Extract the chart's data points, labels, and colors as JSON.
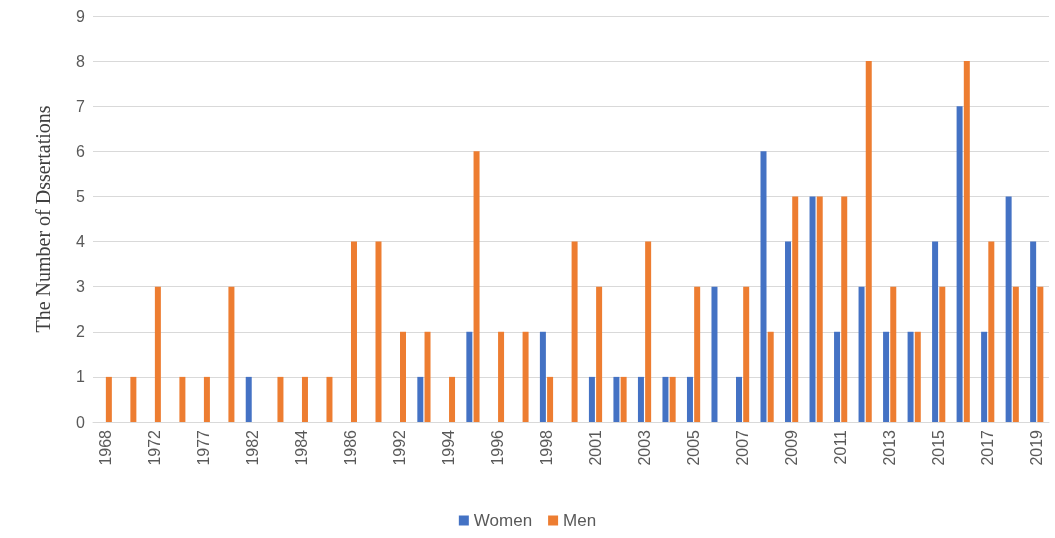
{
  "chart_data": {
    "type": "bar",
    "ylabel": "The Number of Dssertations",
    "categories": [
      "1968",
      null,
      "1972",
      null,
      "1977",
      null,
      "1982",
      null,
      "1984",
      null,
      "1986",
      null,
      "1992",
      null,
      "1994",
      null,
      "1996",
      null,
      "1998",
      null,
      "2001",
      null,
      "2003",
      null,
      "2005",
      null,
      "2007",
      null,
      "2009",
      null,
      "2011",
      null,
      "2013",
      null,
      "2015",
      null,
      "2017",
      null,
      "2019"
    ],
    "series": [
      {
        "name": "Women",
        "color": "#4472c4",
        "values": [
          0,
          0,
          0,
          0,
          0,
          0,
          1,
          0,
          0,
          0,
          0,
          0,
          0,
          1,
          0,
          2,
          0,
          0,
          2,
          0,
          1,
          1,
          1,
          1,
          1,
          3,
          1,
          6,
          4,
          5,
          2,
          3,
          2,
          2,
          4,
          7,
          2,
          5,
          4
        ]
      },
      {
        "name": "Men",
        "color": "#ed7d31",
        "values": [
          1,
          1,
          3,
          1,
          1,
          3,
          0,
          1,
          1,
          1,
          4,
          4,
          2,
          2,
          1,
          6,
          2,
          2,
          1,
          4,
          3,
          1,
          4,
          1,
          3,
          0,
          3,
          2,
          5,
          5,
          5,
          8,
          3,
          2,
          3,
          8,
          4,
          3,
          3
        ]
      }
    ],
    "ylim": [
      0,
      9
    ],
    "yticks": [
      0,
      1,
      2,
      3,
      4,
      5,
      6,
      7,
      8,
      9
    ],
    "grid": "y",
    "legend": "bottom"
  }
}
